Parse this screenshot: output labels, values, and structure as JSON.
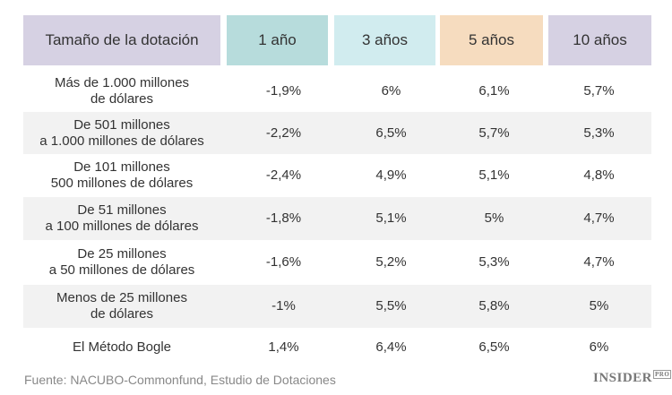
{
  "chart_data": {
    "type": "table",
    "columns": [
      "Tamaño de la dotación",
      "1 año",
      "3 años",
      "5 años",
      "10 años"
    ],
    "header_colors": [
      "#d6d1e3",
      "#b7dcdc",
      "#d1ecef",
      "#f6dcbf",
      "#d6d1e3"
    ],
    "rows": [
      [
        "Más de 1.000 millones\nde dólares",
        "-1,9%",
        "6%",
        "6,1%",
        "5,7%"
      ],
      [
        "De 501 millones\na 1.000 millones de dólares",
        "-2,2%",
        "6,5%",
        "5,7%",
        "5,3%"
      ],
      [
        "De 101 millones\n500 millones de dólares",
        "-2,4%",
        "4,9%",
        "5,1%",
        "4,8%"
      ],
      [
        "De 51 millones\na 100 millones de dólares",
        "-1,8%",
        "5,1%",
        "5%",
        "4,7%"
      ],
      [
        "De 25 millones\na 50 millones de dólares",
        "-1,6%",
        "5,2%",
        "5,3%",
        "4,7%"
      ],
      [
        "Menos de 25 millones\nde dólares",
        "-1%",
        "5,5%",
        "5,8%",
        "5%"
      ],
      [
        "El Método Bogle",
        "1,4%",
        "6,4%",
        "6,5%",
        "6%"
      ]
    ]
  },
  "footer": {
    "source": "Fuente: NACUBO-Commonfund, Estudio de Dotaciones",
    "logo": "INSIDER",
    "logo_sup": "PRO"
  }
}
